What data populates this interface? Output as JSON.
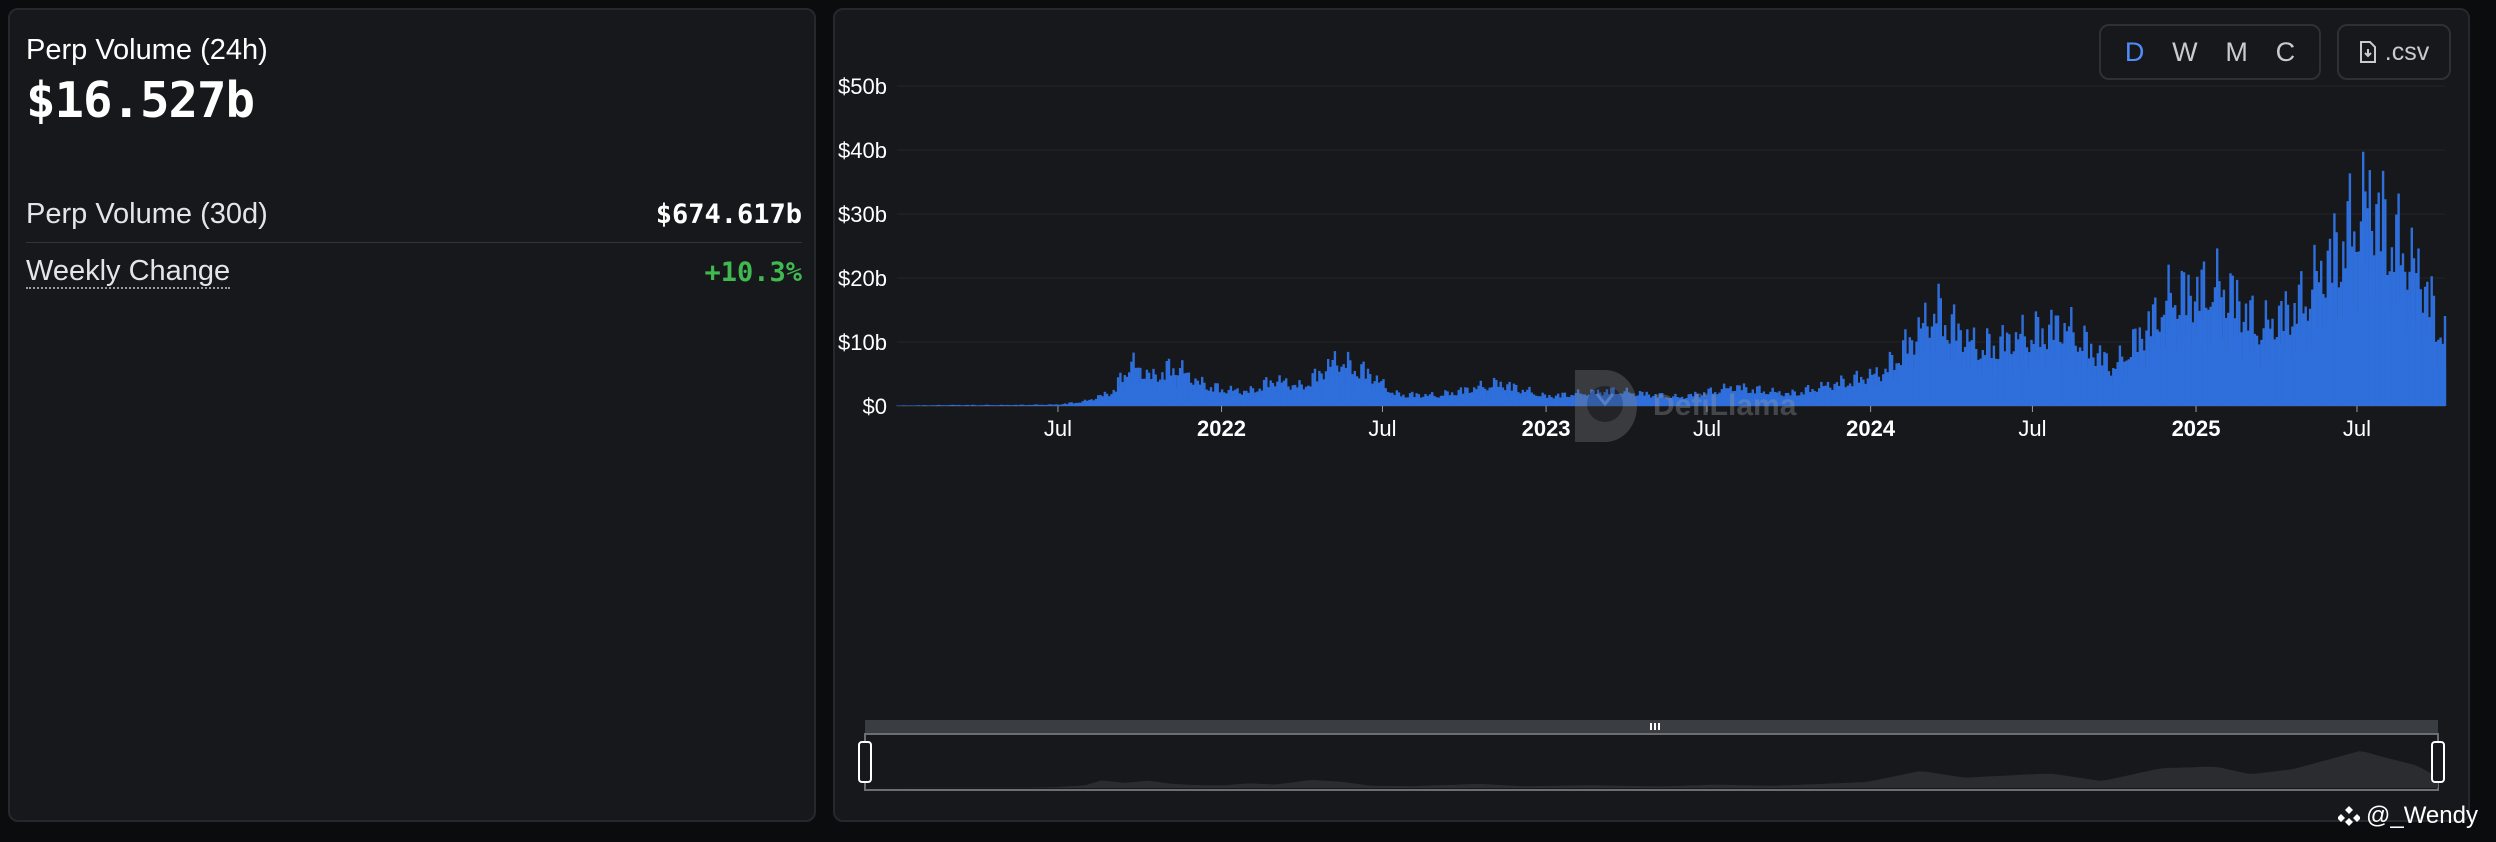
{
  "left": {
    "title": "Perp Volume (24h)",
    "value": "$16.527b",
    "stats": [
      {
        "label": "Perp Volume (30d)",
        "value": "$674.617b"
      },
      {
        "label": "Weekly Change",
        "value": "+10.3%"
      }
    ]
  },
  "toolbar": {
    "toggles": [
      "D",
      "W",
      "M",
      "C"
    ],
    "active": "D",
    "csv_label": ".csv"
  },
  "watermark": "DefiLlama",
  "credit": "@_Wendy",
  "colors": {
    "bar": "#2f6fdc",
    "accent": "#4f8ef7",
    "positive": "#3fb950"
  },
  "chart_data": {
    "type": "bar",
    "title": "",
    "xlabel": "",
    "ylabel": "",
    "ylim": [
      0,
      50
    ],
    "y_unit": "b",
    "y_ticks": [
      "$0",
      "$10b",
      "$20b",
      "$30b",
      "$40b",
      "$50b"
    ],
    "x_ticks": [
      {
        "label": "Jul",
        "date": "2021-07-01",
        "bold": false
      },
      {
        "label": "2022",
        "date": "2022-01-01",
        "bold": true
      },
      {
        "label": "Jul",
        "date": "2022-07-01",
        "bold": false
      },
      {
        "label": "2023",
        "date": "2023-01-01",
        "bold": true
      },
      {
        "label": "Jul",
        "date": "2023-07-01",
        "bold": false
      },
      {
        "label": "2024",
        "date": "2024-01-01",
        "bold": true
      },
      {
        "label": "Jul",
        "date": "2024-07-01",
        "bold": false
      },
      {
        "label": "2025",
        "date": "2025-01-01",
        "bold": true
      },
      {
        "label": "Jul",
        "date": "2025-07-01",
        "bold": false
      }
    ],
    "series": [
      {
        "values": [
          {
            "date": "2021-01-01",
            "y": 0.1
          },
          {
            "date": "2021-03-01",
            "y": 0.2
          },
          {
            "date": "2021-05-01",
            "y": 0.2
          },
          {
            "date": "2021-07-01",
            "y": 0.3
          },
          {
            "date": "2021-08-01",
            "y": 1.0
          },
          {
            "date": "2021-09-01",
            "y": 3.0
          },
          {
            "date": "2021-09-20",
            "y": 9.0
          },
          {
            "date": "2021-10-15",
            "y": 6.0
          },
          {
            "date": "2021-11-10",
            "y": 8.5
          },
          {
            "date": "2021-12-05",
            "y": 5.0
          },
          {
            "date": "2022-01-01",
            "y": 3.5
          },
          {
            "date": "2022-02-01",
            "y": 3.0
          },
          {
            "date": "2022-03-01",
            "y": 5.5
          },
          {
            "date": "2022-04-01",
            "y": 4.0
          },
          {
            "date": "2022-05-10",
            "y": 9.5
          },
          {
            "date": "2022-06-15",
            "y": 7.0
          },
          {
            "date": "2022-07-15",
            "y": 2.5
          },
          {
            "date": "2022-09-01",
            "y": 2.2
          },
          {
            "date": "2022-11-10",
            "y": 4.8
          },
          {
            "date": "2023-01-01",
            "y": 2.0
          },
          {
            "date": "2023-03-15",
            "y": 3.2
          },
          {
            "date": "2023-06-01",
            "y": 1.8
          },
          {
            "date": "2023-08-01",
            "y": 4.0
          },
          {
            "date": "2023-10-01",
            "y": 2.5
          },
          {
            "date": "2023-12-01",
            "y": 5.0
          },
          {
            "date": "2024-01-15",
            "y": 7.0
          },
          {
            "date": "2024-03-15",
            "y": 20.0
          },
          {
            "date": "2024-05-01",
            "y": 12.0
          },
          {
            "date": "2024-08-05",
            "y": 17.0
          },
          {
            "date": "2024-10-01",
            "y": 8.0
          },
          {
            "date": "2024-12-05",
            "y": 23.0
          },
          {
            "date": "2025-02-03",
            "y": 25.0
          },
          {
            "date": "2025-03-15",
            "y": 16.0
          },
          {
            "date": "2025-05-01",
            "y": 22.0
          },
          {
            "date": "2025-07-15",
            "y": 43.5
          },
          {
            "date": "2025-08-05",
            "y": 37.0
          },
          {
            "date": "2025-09-15",
            "y": 26.0
          },
          {
            "date": "2025-10-01",
            "y": 16.5
          }
        ]
      }
    ]
  }
}
